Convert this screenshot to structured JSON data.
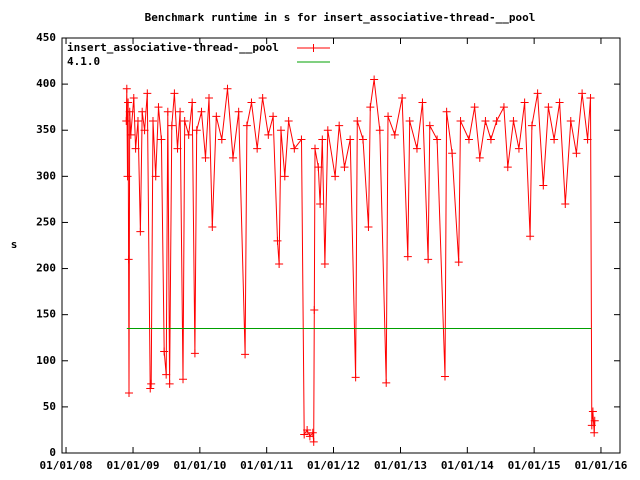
{
  "chart_data": {
    "type": "line",
    "title": "Benchmark runtime in s for insert_associative-thread-__pool",
    "y_label": "s",
    "legend": "top left",
    "xlim": [
      "2007-12-10",
      "2016-04-14"
    ],
    "xticks": [
      {
        "value": "2008-01-01",
        "label": "01/01/08"
      },
      {
        "value": "2009-01-01",
        "label": "01/01/09"
      },
      {
        "value": "2010-01-01",
        "label": "01/01/10"
      },
      {
        "value": "2011-01-01",
        "label": "01/01/11"
      },
      {
        "value": "2012-01-01",
        "label": "01/01/12"
      },
      {
        "value": "2013-01-01",
        "label": "01/01/13"
      },
      {
        "value": "2014-01-01",
        "label": "01/01/14"
      },
      {
        "value": "2015-01-01",
        "label": "01/01/15"
      },
      {
        "value": "2016-01-01",
        "label": "01/01/16"
      }
    ],
    "ylim": [
      0,
      450
    ],
    "yticks": [
      0,
      50,
      100,
      150,
      200,
      250,
      300,
      350,
      400,
      450
    ],
    "series": [
      {
        "name": "insert_associative-thread-__pool",
        "color": "#ff0000",
        "marker": "+",
        "x": [
          "2008-11-25",
          "2008-11-28",
          "2008-12-02",
          "2008-12-05",
          "2008-12-08",
          "2008-12-10",
          "2008-12-14",
          "2008-12-20",
          "2009-01-05",
          "2009-01-15",
          "2009-01-28",
          "2009-02-10",
          "2009-02-20",
          "2009-03-05",
          "2009-03-20",
          "2009-04-05",
          "2009-04-10",
          "2009-04-20",
          "2009-05-05",
          "2009-05-20",
          "2009-06-05",
          "2009-06-20",
          "2009-07-01",
          "2009-07-10",
          "2009-07-20",
          "2009-08-01",
          "2009-08-15",
          "2009-09-01",
          "2009-09-15",
          "2009-10-01",
          "2009-10-10",
          "2009-11-01",
          "2009-11-20",
          "2009-12-05",
          "2009-12-15",
          "2010-01-10",
          "2010-02-01",
          "2010-02-20",
          "2010-03-10",
          "2010-04-01",
          "2010-05-01",
          "2010-06-01",
          "2010-07-01",
          "2010-08-01",
          "2010-09-05",
          "2010-09-15",
          "2010-10-10",
          "2010-11-10",
          "2010-12-10",
          "2011-01-10",
          "2011-02-05",
          "2011-03-01",
          "2011-03-10",
          "2011-03-20",
          "2011-04-10",
          "2011-05-01",
          "2011-06-01",
          "2011-07-10",
          "2011-07-25",
          "2011-08-10",
          "2011-08-25",
          "2011-09-10",
          "2011-09-15",
          "2011-09-18",
          "2011-09-22",
          "2011-10-10",
          "2011-10-20",
          "2011-11-01",
          "2011-11-15",
          "2011-12-01",
          "2012-01-10",
          "2012-02-01",
          "2012-03-01",
          "2012-04-01",
          "2012-05-01",
          "2012-05-10",
          "2012-06-10",
          "2012-07-10",
          "2012-07-20",
          "2012-08-10",
          "2012-09-10",
          "2012-10-15",
          "2012-10-25",
          "2012-12-01",
          "2013-01-10",
          "2013-02-10",
          "2013-02-20",
          "2013-04-01",
          "2013-05-01",
          "2013-06-01",
          "2013-06-10",
          "2013-07-20",
          "2013-09-01",
          "2013-09-10",
          "2013-10-10",
          "2013-11-15",
          "2013-11-25",
          "2014-01-10",
          "2014-02-10",
          "2014-03-10",
          "2014-04-10",
          "2014-05-10",
          "2014-06-10",
          "2014-07-20",
          "2014-08-10",
          "2014-09-10",
          "2014-10-10",
          "2014-11-10",
          "2014-12-10",
          "2014-12-20",
          "2015-01-20",
          "2015-02-20",
          "2015-03-20",
          "2015-04-20",
          "2015-05-20",
          "2015-06-20",
          "2015-07-20",
          "2015-08-20",
          "2015-09-20",
          "2015-10-20",
          "2015-11-05",
          "2015-11-12",
          "2015-11-18",
          "2015-11-25",
          "2015-11-28"
        ],
        "values": [
          360,
          395,
          300,
          380,
          210,
          65,
          370,
          345,
          385,
          330,
          360,
          240,
          370,
          350,
          390,
          70,
          75,
          360,
          300,
          375,
          340,
          110,
          85,
          370,
          75,
          355,
          390,
          330,
          370,
          80,
          360,
          345,
          380,
          108,
          350,
          370,
          320,
          385,
          245,
          365,
          340,
          395,
          320,
          370,
          107,
          355,
          380,
          330,
          385,
          345,
          365,
          230,
          205,
          350,
          300,
          360,
          330,
          340,
          20,
          25,
          18,
          22,
          12,
          155,
          330,
          310,
          270,
          340,
          205,
          350,
          300,
          355,
          310,
          340,
          82,
          360,
          340,
          245,
          375,
          405,
          350,
          76,
          365,
          345,
          385,
          213,
          360,
          330,
          380,
          210,
          355,
          340,
          83,
          370,
          325,
          207,
          360,
          340,
          375,
          320,
          360,
          340,
          360,
          375,
          310,
          360,
          330,
          380,
          235,
          355,
          390,
          290,
          375,
          340,
          380,
          270,
          360,
          325,
          390,
          340,
          385,
          30,
          45,
          22,
          35
        ]
      },
      {
        "name": "4.1.0",
        "color": "#00a000",
        "x": [
          "2008-11-28",
          "2015-11-10"
        ],
        "values": [
          135,
          135
        ]
      }
    ]
  }
}
